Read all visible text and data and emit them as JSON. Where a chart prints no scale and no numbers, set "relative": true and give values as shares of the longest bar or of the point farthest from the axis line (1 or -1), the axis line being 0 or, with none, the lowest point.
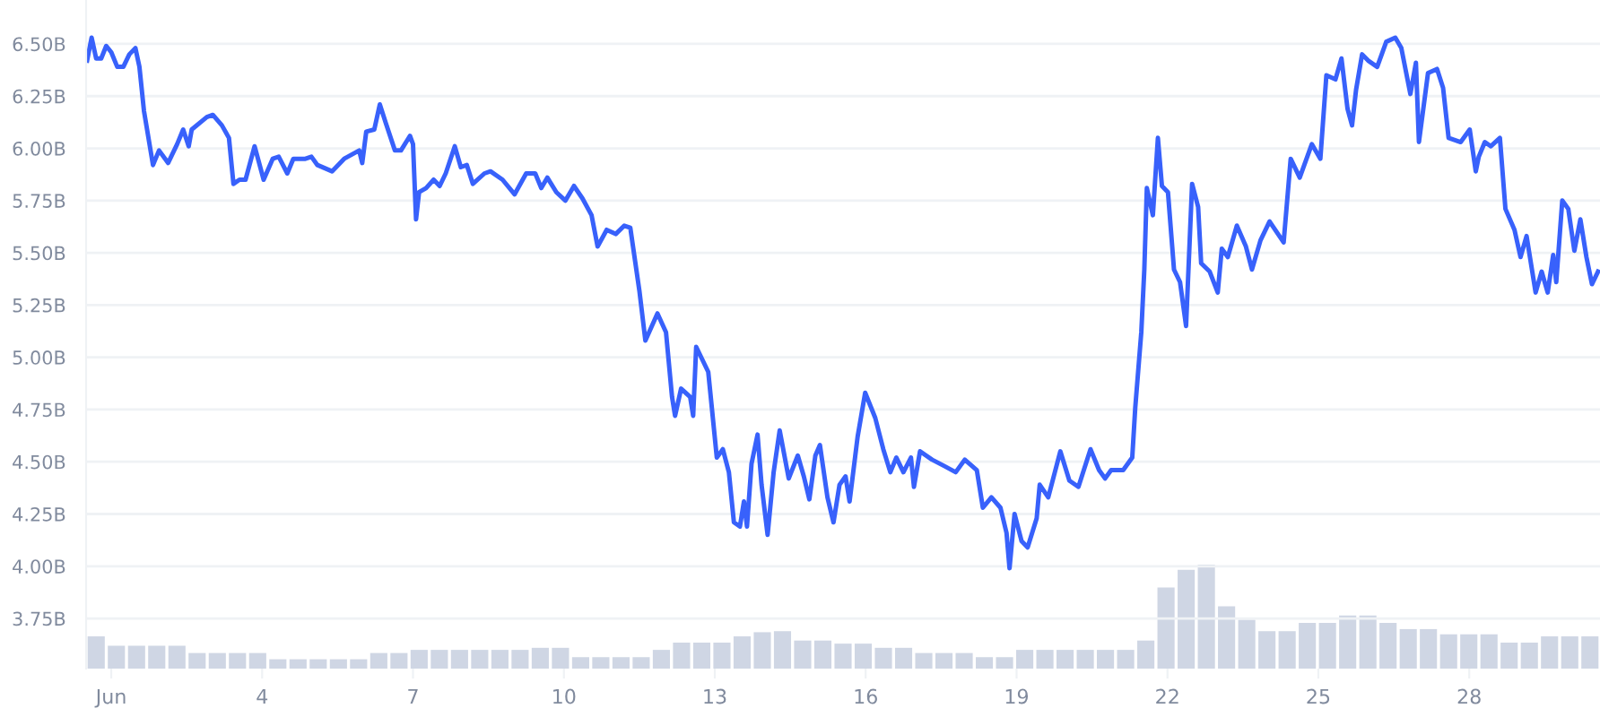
{
  "chart_data": [
    {
      "type": "line",
      "x": [
        0.52,
        0.61,
        0.7,
        0.8,
        0.9,
        1.0,
        1.12,
        1.24,
        1.36,
        1.48,
        1.56,
        1.65,
        1.83,
        1.95,
        2.13,
        2.31,
        2.43,
        2.54,
        2.6,
        2.9,
        3.02,
        3.2,
        3.34,
        3.43,
        3.55,
        3.67,
        3.85,
        4.03,
        4.21,
        4.33,
        4.5,
        4.62,
        4.86,
        4.98,
        5.1,
        5.39,
        5.63,
        5.93,
        5.99,
        6.07,
        6.23,
        6.34,
        6.46,
        6.64,
        6.76,
        6.94,
        7.0,
        7.06,
        7.12,
        7.26,
        7.41,
        7.53,
        7.65,
        7.83,
        7.95,
        8.07,
        8.19,
        8.42,
        8.54,
        8.78,
        9.02,
        9.25,
        9.43,
        9.55,
        9.67,
        9.85,
        10.03,
        10.2,
        10.37,
        10.55,
        10.67,
        10.85,
        11.03,
        11.2,
        11.32,
        11.5,
        11.62,
        11.86,
        12.03,
        12.15,
        12.21,
        12.33,
        12.51,
        12.57,
        12.63,
        12.87,
        13.04,
        13.16,
        13.28,
        13.38,
        13.5,
        13.58,
        13.64,
        13.73,
        13.85,
        13.93,
        14.05,
        14.17,
        14.29,
        14.47,
        14.65,
        14.77,
        14.88,
        15.0,
        15.09,
        15.24,
        15.36,
        15.48,
        15.6,
        15.68,
        15.84,
        15.99,
        16.19,
        16.35,
        16.49,
        16.61,
        16.75,
        16.9,
        16.96,
        17.08,
        17.32,
        17.56,
        17.79,
        17.97,
        18.21,
        18.33,
        18.5,
        18.68,
        18.8,
        18.86,
        18.96,
        19.1,
        19.22,
        19.4,
        19.46,
        19.63,
        19.87,
        20.05,
        20.23,
        20.47,
        20.64,
        20.76,
        20.88,
        21.12,
        21.3,
        21.36,
        21.48,
        21.54,
        21.59,
        21.71,
        21.81,
        21.89,
        22.01,
        22.13,
        22.25,
        22.37,
        22.49,
        22.61,
        22.67,
        22.84,
        23.0,
        23.08,
        23.2,
        23.38,
        23.56,
        23.68,
        23.85,
        24.03,
        24.31,
        24.45,
        24.63,
        24.87,
        25.04,
        25.16,
        25.34,
        25.46,
        25.58,
        25.67,
        25.75,
        25.87,
        25.99,
        26.17,
        26.35,
        26.53,
        26.65,
        26.83,
        26.94,
        27.0,
        27.18,
        27.36,
        27.48,
        27.59,
        27.83,
        28.01,
        28.13,
        28.19,
        28.31,
        28.43,
        28.61,
        28.72,
        28.9,
        29.02,
        29.14,
        29.32,
        29.44,
        29.56,
        29.67,
        29.73,
        29.85,
        29.97,
        30.09,
        30.21,
        30.33,
        30.44,
        30.56
      ],
      "series": [
        {
          "color": "#3861fb",
          "values": [
            6.42,
            6.53,
            6.43,
            6.43,
            6.49,
            6.46,
            6.39,
            6.39,
            6.45,
            6.48,
            6.39,
            6.18,
            5.92,
            5.99,
            5.93,
            6.02,
            6.09,
            6.01,
            6.09,
            6.15,
            6.16,
            6.11,
            6.05,
            5.83,
            5.85,
            5.85,
            6.01,
            5.85,
            5.95,
            5.96,
            5.88,
            5.95,
            5.95,
            5.96,
            5.92,
            5.89,
            5.95,
            5.99,
            5.93,
            6.08,
            6.09,
            6.21,
            6.12,
            5.99,
            5.99,
            6.06,
            6.02,
            5.66,
            5.79,
            5.81,
            5.85,
            5.82,
            5.88,
            6.01,
            5.91,
            5.92,
            5.83,
            5.88,
            5.89,
            5.85,
            5.78,
            5.88,
            5.88,
            5.81,
            5.86,
            5.79,
            5.75,
            5.82,
            5.76,
            5.68,
            5.53,
            5.61,
            5.59,
            5.63,
            5.62,
            5.32,
            5.08,
            5.21,
            5.12,
            4.81,
            4.72,
            4.85,
            4.81,
            4.72,
            5.05,
            4.93,
            4.52,
            4.56,
            4.45,
            4.21,
            4.19,
            4.31,
            4.19,
            4.49,
            4.63,
            4.39,
            4.15,
            4.45,
            4.65,
            4.42,
            4.53,
            4.43,
            4.32,
            4.53,
            4.58,
            4.33,
            4.21,
            4.39,
            4.43,
            4.31,
            4.62,
            4.83,
            4.71,
            4.56,
            4.45,
            4.52,
            4.45,
            4.52,
            4.38,
            4.55,
            4.51,
            4.48,
            4.45,
            4.51,
            4.46,
            4.28,
            4.33,
            4.28,
            4.16,
            3.99,
            4.25,
            4.12,
            4.09,
            4.23,
            4.39,
            4.33,
            4.55,
            4.41,
            4.38,
            4.56,
            4.46,
            4.42,
            4.46,
            4.46,
            4.52,
            4.76,
            5.12,
            5.42,
            5.81,
            5.68,
            6.05,
            5.82,
            5.79,
            5.42,
            5.36,
            5.15,
            5.83,
            5.72,
            5.45,
            5.41,
            5.31,
            5.52,
            5.48,
            5.63,
            5.53,
            5.42,
            5.56,
            5.65,
            5.55,
            5.95,
            5.86,
            6.02,
            5.95,
            6.35,
            6.33,
            6.43,
            6.19,
            6.11,
            6.28,
            6.45,
            6.42,
            6.39,
            6.51,
            6.53,
            6.48,
            6.26,
            6.41,
            6.03,
            6.36,
            6.38,
            6.29,
            6.05,
            6.03,
            6.09,
            5.89,
            5.96,
            6.03,
            6.01,
            6.05,
            5.71,
            5.61,
            5.48,
            5.58,
            5.31,
            5.41,
            5.31,
            5.49,
            5.36,
            5.75,
            5.71,
            5.51,
            5.66,
            5.48,
            5.35,
            5.41
          ]
        }
      ],
      "xlim": [
        0.5,
        30.6
      ],
      "xticks": [
        {
          "value": 1,
          "label": "Jun"
        },
        4,
        7,
        10,
        13,
        16,
        19,
        22,
        25,
        28
      ],
      "ylim": [
        3.51,
        6.71
      ],
      "yticks": [
        {
          "value": 3.75,
          "label": "3.75B"
        },
        {
          "value": 4.0,
          "label": "4.00B"
        },
        {
          "value": 4.25,
          "label": "4.25B"
        },
        {
          "value": 4.5,
          "label": "4.50B"
        },
        {
          "value": 4.75,
          "label": "4.75B"
        },
        {
          "value": 5.0,
          "label": "5.00B"
        },
        {
          "value": 5.25,
          "label": "5.25B"
        },
        {
          "value": 5.5,
          "label": "5.50B"
        },
        {
          "value": 5.75,
          "label": "5.75B"
        },
        {
          "value": 6.0,
          "label": "6.00B"
        },
        {
          "value": 6.25,
          "label": "6.25B"
        },
        {
          "value": 6.5,
          "label": "6.50B"
        }
      ],
      "grid": "y",
      "marker": "none",
      "line_style": "solid"
    },
    {
      "type": "bar",
      "relative": true,
      "tick_labels": false,
      "categories": [
        null,
        null,
        null,
        null,
        null,
        null,
        null,
        null,
        null,
        null,
        null,
        null,
        null,
        null,
        null,
        null,
        null,
        null,
        null,
        null,
        null,
        null,
        null,
        null,
        null,
        null,
        null,
        null,
        null,
        null,
        null,
        null,
        null,
        null,
        null,
        null,
        null,
        null,
        null,
        null,
        null,
        null,
        null,
        null,
        null,
        null,
        null,
        null,
        null,
        null,
        null,
        null,
        null,
        null,
        null,
        null,
        null,
        null,
        null,
        null,
        null,
        null,
        null,
        null,
        null,
        null,
        null,
        null,
        null,
        null,
        null,
        null,
        null,
        null,
        null
      ],
      "series": [
        {
          "color": "#cfd6e4",
          "values": [
            0.31,
            0.22,
            0.22,
            0.22,
            0.22,
            0.15,
            0.15,
            0.15,
            0.15,
            0.09,
            0.09,
            0.09,
            0.09,
            0.09,
            0.15,
            0.15,
            0.18,
            0.18,
            0.18,
            0.18,
            0.18,
            0.18,
            0.2,
            0.2,
            0.11,
            0.11,
            0.11,
            0.11,
            0.18,
            0.25,
            0.25,
            0.25,
            0.31,
            0.35,
            0.36,
            0.27,
            0.27,
            0.24,
            0.24,
            0.2,
            0.2,
            0.15,
            0.15,
            0.15,
            0.11,
            0.11,
            0.18,
            0.18,
            0.18,
            0.18,
            0.18,
            0.18,
            0.27,
            0.78,
            0.95,
            1,
            0.6,
            0.47,
            0.36,
            0.36,
            0.44,
            0.44,
            0.51,
            0.51,
            0.44,
            0.38,
            0.38,
            0.33,
            0.33,
            0.33,
            0.25,
            0.25,
            0.31,
            0.31,
            0.31
          ]
        }
      ]
    }
  ]
}
